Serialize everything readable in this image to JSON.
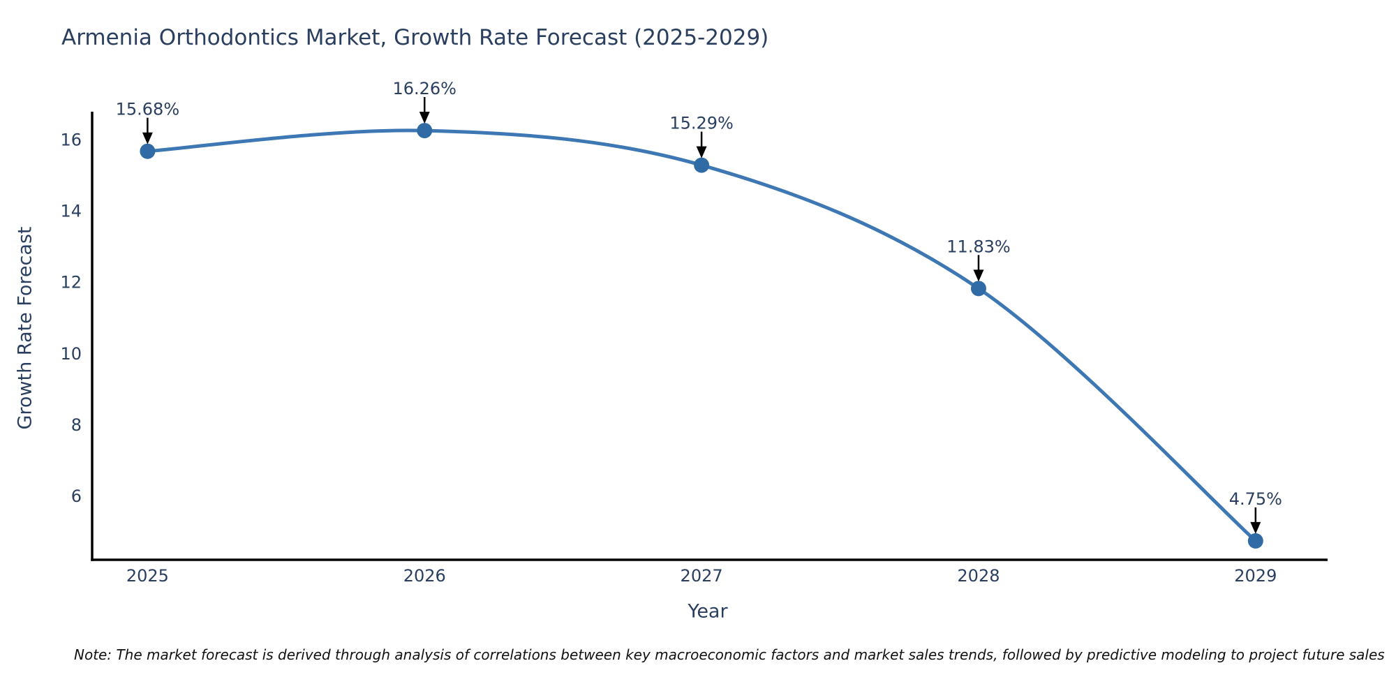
{
  "chart_data": {
    "type": "line",
    "title": "Armenia Orthodontics Market, Growth Rate Forecast (2025-2029)",
    "xlabel": "Year",
    "ylabel": "Growth Rate Forecast",
    "x": [
      2025,
      2026,
      2027,
      2028,
      2029
    ],
    "x_tick_labels": [
      "2025",
      "2026",
      "2027",
      "2028",
      "2029"
    ],
    "series": [
      {
        "name": "Growth Rate Forecast",
        "values": [
          15.68,
          16.26,
          15.29,
          11.83,
          4.75
        ]
      }
    ],
    "point_labels": [
      "15.68%",
      "16.26%",
      "15.29%",
      "11.83%",
      "4.75%"
    ],
    "yticks": [
      6,
      8,
      10,
      12,
      14,
      16
    ],
    "ylim": [
      4.22,
      16.79
    ],
    "xlim": [
      2024.8,
      2029.26
    ],
    "grid": false,
    "legend": "none",
    "curve": "spline",
    "colors": {
      "line": "#3d78b4",
      "marker": "#306ba6",
      "annotation_arrow": "#000000",
      "text": "#2a3f5f",
      "axis_line": "#000000"
    }
  },
  "note": {
    "text": "Note: The market forecast is derived through analysis of correlations between key macroeconomic factors and market sales trends, followed by predictive modeling to project future sales"
  }
}
